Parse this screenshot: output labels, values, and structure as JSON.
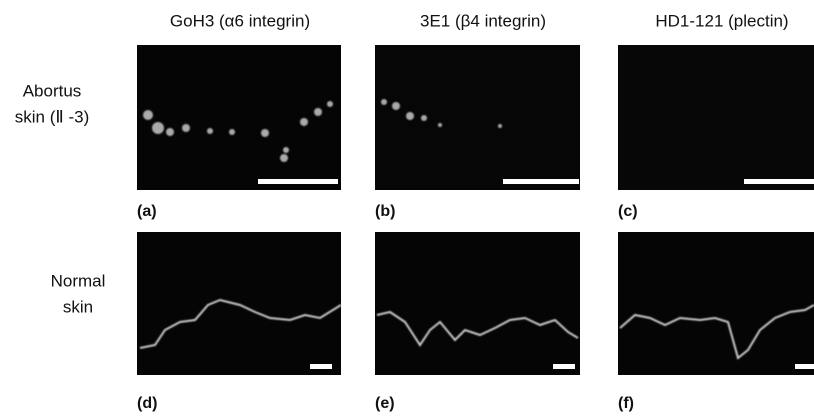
{
  "column_headers": [
    "GoH3 (α6 integrin)",
    "3E1 (β4 integrin)",
    "HD1-121 (plectin)"
  ],
  "row_labels": [
    {
      "lines": [
        "Abortus",
        "skin (Ⅱ -3)"
      ]
    },
    {
      "lines": [
        "Normal",
        "skin"
      ]
    }
  ],
  "panel_labels": [
    "(a)",
    "(b)",
    "(c)",
    "(d)",
    "(e)",
    "(f)"
  ]
}
